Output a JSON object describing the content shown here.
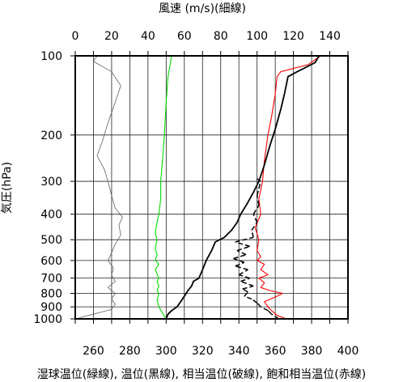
{
  "chart_data": {
    "type": "line",
    "title": "風速 (m/s)(細線)",
    "xlabel": "湿球温位(緑線), 温位(黒線), 相当温位(破線), 飽和相当温位(赤線)",
    "ylabel": "気圧(hPa)",
    "y_scale": "log",
    "y_inverted": true,
    "ylim": [
      1000,
      100
    ],
    "y_ticks": [
      100,
      200,
      300,
      400,
      500,
      600,
      700,
      800,
      900,
      1000
    ],
    "y_tick_labels": [
      "100",
      "200",
      "300",
      "400",
      "500",
      "600",
      "700",
      "800",
      "900",
      "1000"
    ],
    "xlim": [
      250,
      400
    ],
    "x_ticks": [
      260,
      280,
      300,
      320,
      340,
      360,
      380,
      400
    ],
    "x_tick_labels": [
      "260",
      "280",
      "300",
      "320",
      "340",
      "360",
      "380",
      "400"
    ],
    "x2lim": [
      0,
      150
    ],
    "x2_ticks": [
      0,
      20,
      40,
      60,
      80,
      100,
      120,
      140
    ],
    "x2_tick_labels": [
      "0",
      "20",
      "40",
      "60",
      "80",
      "100",
      "120",
      "140"
    ],
    "grid": true,
    "series": [
      {
        "color": "#ff0000",
        "axis": "bottom",
        "style": "solid",
        "points": [
          [
            366,
            1000
          ],
          [
            361,
            970
          ],
          [
            358,
            930
          ],
          [
            356,
            900
          ],
          [
            354,
            860
          ],
          [
            361,
            820
          ],
          [
            364,
            800
          ],
          [
            357,
            780
          ],
          [
            352,
            760
          ],
          [
            354,
            730
          ],
          [
            351,
            700
          ],
          [
            356,
            680
          ],
          [
            352,
            650
          ],
          [
            354,
            620
          ],
          [
            350,
            600
          ],
          [
            352,
            580
          ],
          [
            350,
            550
          ],
          [
            351,
            500
          ],
          [
            349,
            450
          ],
          [
            352,
            400
          ],
          [
            351,
            350
          ],
          [
            353,
            300
          ],
          [
            354,
            250
          ],
          [
            356,
            200
          ],
          [
            358,
            170
          ],
          [
            360,
            140
          ],
          [
            361,
            120
          ],
          [
            363,
            115
          ],
          [
            378,
            108
          ],
          [
            385,
            100
          ]
        ]
      },
      {
        "color": "#000000",
        "axis": "bottom",
        "style": "solid",
        "points": [
          [
            300,
            1000
          ],
          [
            301,
            960
          ],
          [
            303,
            930
          ],
          [
            306,
            900
          ],
          [
            308,
            860
          ],
          [
            310,
            820
          ],
          [
            311,
            800
          ],
          [
            312,
            780
          ],
          [
            314,
            750
          ],
          [
            315,
            720
          ],
          [
            318,
            700
          ],
          [
            320,
            650
          ],
          [
            322,
            600
          ],
          [
            325,
            550
          ],
          [
            327,
            510
          ],
          [
            332,
            490
          ],
          [
            336,
            460
          ],
          [
            339,
            430
          ],
          [
            341,
            400
          ],
          [
            344,
            370
          ],
          [
            346,
            350
          ],
          [
            348,
            330
          ],
          [
            351,
            300
          ],
          [
            354,
            260
          ],
          [
            357,
            220
          ],
          [
            360,
            190
          ],
          [
            363,
            160
          ],
          [
            365,
            140
          ],
          [
            367,
            120
          ],
          [
            372,
            115
          ],
          [
            382,
            106
          ],
          [
            384,
            100
          ]
        ]
      },
      {
        "color": "#000000",
        "axis": "bottom",
        "style": "dashed",
        "points": [
          [
            362,
            1000
          ],
          [
            358,
            960
          ],
          [
            356,
            930
          ],
          [
            352,
            900
          ],
          [
            350,
            870
          ],
          [
            347,
            840
          ],
          [
            343,
            820
          ],
          [
            345,
            790
          ],
          [
            342,
            770
          ],
          [
            348,
            750
          ],
          [
            341,
            720
          ],
          [
            346,
            700
          ],
          [
            340,
            680
          ],
          [
            345,
            650
          ],
          [
            338,
            630
          ],
          [
            343,
            610
          ],
          [
            337,
            590
          ],
          [
            344,
            570
          ],
          [
            339,
            550
          ],
          [
            346,
            530
          ],
          [
            338,
            510
          ],
          [
            348,
            490
          ],
          [
            347,
            460
          ],
          [
            350,
            430
          ],
          [
            348,
            400
          ],
          [
            351,
            370
          ],
          [
            350,
            340
          ],
          [
            352,
            300
          ],
          [
            349,
            290
          ]
        ]
      },
      {
        "color": "#00dd00",
        "axis": "bottom",
        "style": "solid",
        "points": [
          [
            300,
            1000
          ],
          [
            298,
            950
          ],
          [
            296,
            900
          ],
          [
            295,
            850
          ],
          [
            296,
            800
          ],
          [
            295,
            780
          ],
          [
            296,
            750
          ],
          [
            295,
            720
          ],
          [
            296,
            700
          ],
          [
            294,
            650
          ],
          [
            296,
            620
          ],
          [
            294,
            600
          ],
          [
            295,
            570
          ],
          [
            294,
            540
          ],
          [
            295,
            500
          ],
          [
            294,
            470
          ],
          [
            295,
            430
          ],
          [
            296,
            400
          ],
          [
            297,
            350
          ],
          [
            297,
            300
          ],
          [
            298,
            250
          ],
          [
            299,
            200
          ],
          [
            300,
            150
          ],
          [
            301,
            120
          ],
          [
            303,
            100
          ]
        ]
      },
      {
        "color": "#556b55",
        "axis": "top",
        "style": "solid",
        "points": [
          [
            2,
            990
          ],
          [
            10,
            960
          ],
          [
            20,
            920
          ],
          [
            22,
            880
          ],
          [
            20,
            840
          ],
          [
            22,
            800
          ],
          [
            18,
            760
          ],
          [
            22,
            720
          ],
          [
            20,
            680
          ],
          [
            21,
            640
          ],
          [
            18,
            600
          ],
          [
            20,
            560
          ],
          [
            22,
            520
          ],
          [
            25,
            480
          ],
          [
            24,
            440
          ],
          [
            26,
            410
          ],
          [
            22,
            380
          ],
          [
            20,
            340
          ],
          [
            18,
            300
          ],
          [
            16,
            270
          ],
          [
            12,
            240
          ],
          [
            15,
            210
          ],
          [
            18,
            180
          ],
          [
            22,
            150
          ],
          [
            25,
            130
          ],
          [
            20,
            115
          ],
          [
            10,
            105
          ],
          [
            12,
            100
          ]
        ]
      }
    ]
  }
}
